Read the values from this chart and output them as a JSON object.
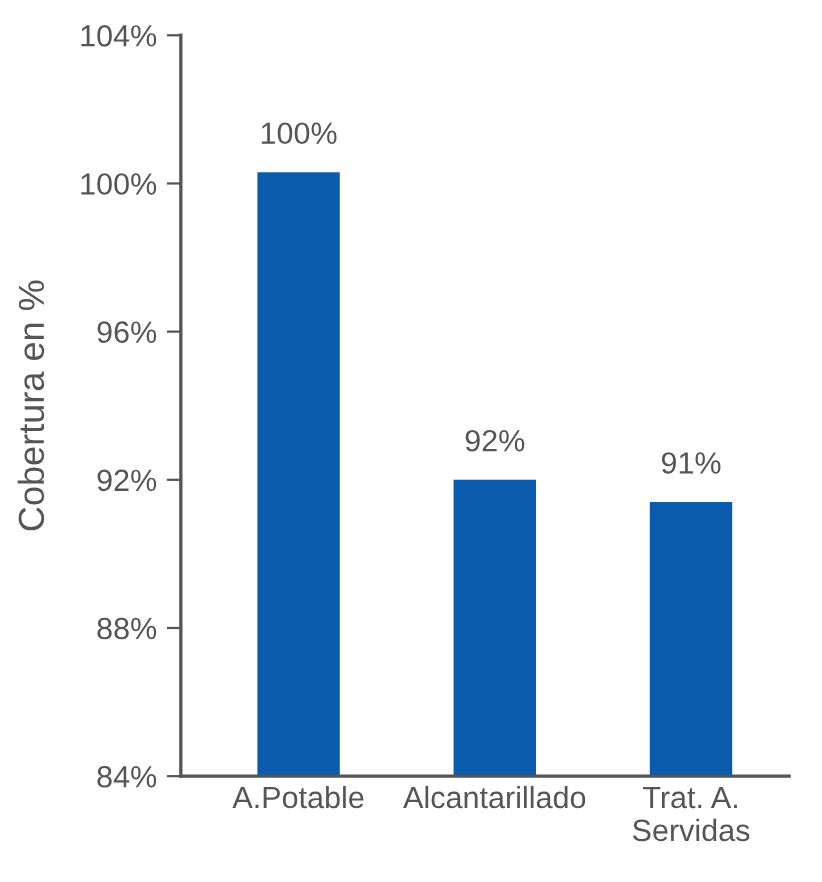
{
  "chart_data": {
    "type": "bar",
    "ylabel": "Cobertura en %",
    "categories": [
      "A.Potable",
      "Alcantarillado",
      "Trat. A.\nServidas"
    ],
    "values": [
      100.3,
      92,
      91.4
    ],
    "value_labels": [
      "100%",
      "92%",
      "91%"
    ],
    "color": "#0b5cad",
    "ylim": [
      84,
      104
    ],
    "yticks": [
      {
        "value": 84,
        "label": "84%"
      },
      {
        "value": 88,
        "label": "88%"
      },
      {
        "value": 92,
        "label": "92%"
      },
      {
        "value": 96,
        "label": "96%"
      },
      {
        "value": 100,
        "label": "100%"
      },
      {
        "value": 104,
        "label": "104%"
      }
    ],
    "grid": false,
    "legend": false
  }
}
